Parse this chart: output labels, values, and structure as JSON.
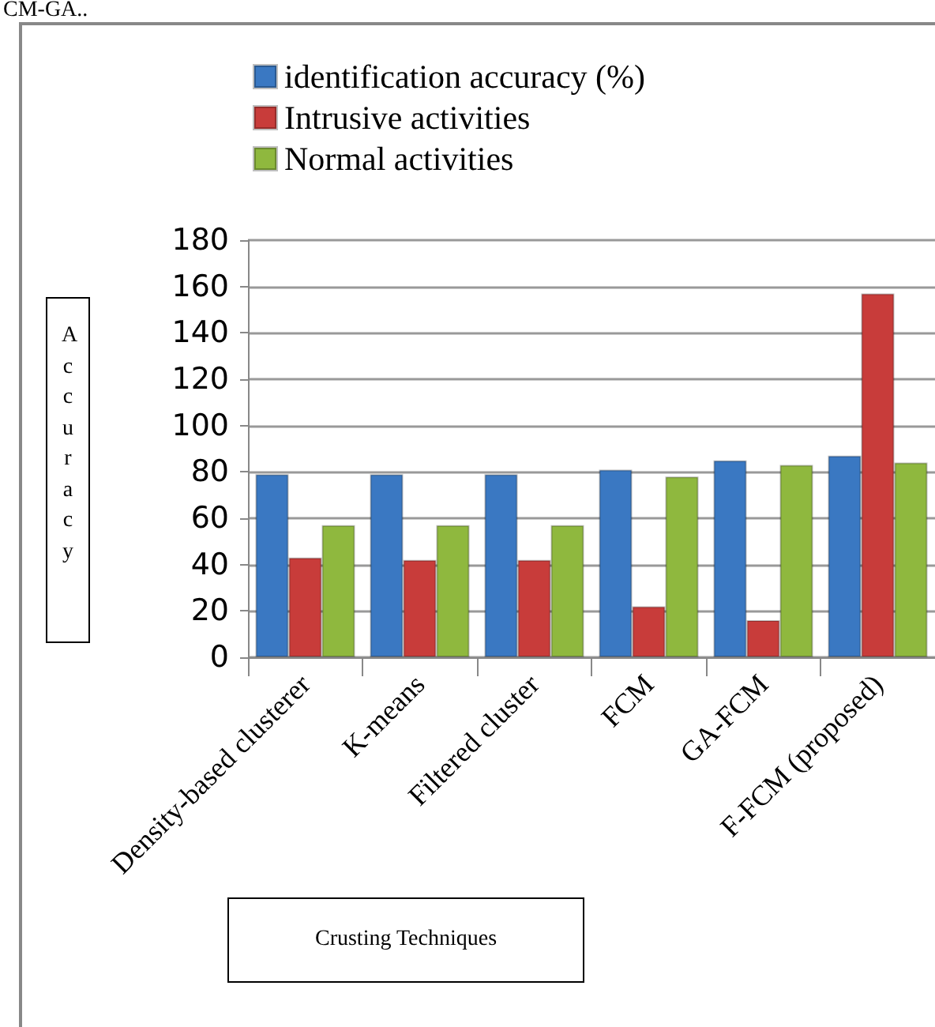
{
  "chart_data": {
    "type": "bar",
    "ylabel": "Accuracy",
    "xlabel": "Crusting Techniques",
    "annotations": [
      "CM-GA.."
    ],
    "categories": [
      "Density-based clusterer",
      "K-means",
      "Filtered cluster",
      "FCM",
      "GA-FCM",
      "F-FCM (proposed)"
    ],
    "series": [
      {
        "name": "identification accuracy (%)",
        "color": "#3a78c2",
        "values": [
          79,
          79,
          79,
          81,
          85,
          87
        ]
      },
      {
        "name": "Intrusive activities",
        "color": "#c83c3a",
        "values": [
          43,
          42,
          42,
          22,
          16,
          157
        ]
      },
      {
        "name": "Normal activities",
        "color": "#8fb83e",
        "values": [
          57,
          57,
          57,
          78,
          83,
          84
        ]
      }
    ],
    "ylim": [
      0,
      180
    ],
    "yticks": [
      0,
      20,
      40,
      60,
      80,
      100,
      120,
      140,
      160,
      180
    ],
    "grid": "y",
    "legend": "top left"
  }
}
